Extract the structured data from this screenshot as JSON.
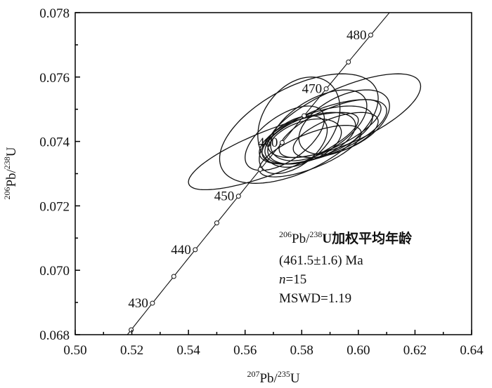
{
  "chart_data": {
    "type": "scatter",
    "subtype": "U-Pb concordia diagram with error ellipses",
    "xlabel": {
      "sup1": "207",
      "main1": "Pb/",
      "sup2": "235",
      "main2": "U"
    },
    "ylabel": {
      "sup1": "206",
      "main1": "Pb/",
      "sup2": "238",
      "main2": "U"
    },
    "xlim": [
      0.5,
      0.64
    ],
    "ylim": [
      0.068,
      0.078
    ],
    "x_ticks": [
      "0.50",
      "0.52",
      "0.54",
      "0.56",
      "0.58",
      "0.60",
      "0.62",
      "0.64"
    ],
    "y_ticks": [
      "0.068",
      "0.070",
      "0.072",
      "0.074",
      "0.076",
      "0.078"
    ],
    "grid": false,
    "concordia": {
      "age_range_ma": [
        420,
        500
      ],
      "marker_step_ma": 5,
      "labeled_ages": [
        "430",
        "440",
        "450",
        "460",
        "470",
        "480"
      ],
      "decay_constants": {
        "l238": 1.55125e-10,
        "l235": 9.8485e-10
      }
    },
    "ellipses": [
      {
        "cx": 0.57,
        "cy": 0.0737,
        "sx": 0.03,
        "sy": 0.0012,
        "rho": 0.8
      },
      {
        "cx": 0.579,
        "cy": 0.0744,
        "sx": 0.028,
        "sy": 0.0017,
        "rho": 0.55
      },
      {
        "cx": 0.595,
        "cy": 0.0748,
        "sx": 0.027,
        "sy": 0.0013,
        "rho": 0.7
      },
      {
        "cx": 0.579,
        "cy": 0.0746,
        "sx": 0.0145,
        "sy": 0.0014,
        "rho": 0.3
      },
      {
        "cx": 0.585,
        "cy": 0.0742,
        "sx": 0.02,
        "sy": 0.0009,
        "rho": 0.6
      },
      {
        "cx": 0.583,
        "cy": 0.0741,
        "sx": 0.016,
        "sy": 0.0008,
        "rho": 0.5
      },
      {
        "cx": 0.588,
        "cy": 0.0743,
        "sx": 0.022,
        "sy": 0.001,
        "rho": 0.65
      },
      {
        "cx": 0.581,
        "cy": 0.074,
        "sx": 0.013,
        "sy": 0.0007,
        "rho": 0.4
      },
      {
        "cx": 0.59,
        "cy": 0.0744,
        "sx": 0.018,
        "sy": 0.0009,
        "rho": 0.7
      },
      {
        "cx": 0.577,
        "cy": 0.0739,
        "sx": 0.012,
        "sy": 0.0009,
        "rho": 0.5
      },
      {
        "cx": 0.586,
        "cy": 0.0745,
        "sx": 0.017,
        "sy": 0.0011,
        "rho": 0.55
      },
      {
        "cx": 0.592,
        "cy": 0.0742,
        "sx": 0.015,
        "sy": 0.0007,
        "rho": 0.6
      },
      {
        "cx": 0.574,
        "cy": 0.0741,
        "sx": 0.014,
        "sy": 0.001,
        "rho": 0.6
      },
      {
        "cx": 0.583,
        "cy": 0.0737,
        "sx": 0.018,
        "sy": 0.0008,
        "rho": 0.7
      },
      {
        "cx": 0.595,
        "cy": 0.0746,
        "sx": 0.016,
        "sy": 0.001,
        "rho": 0.5
      }
    ],
    "annotation": {
      "line1_sup1": "206",
      "line1_main1": "Pb/",
      "line1_sup2": "238",
      "line1_main2": "U加权平均年龄",
      "line2": "(461.5±1.6) Ma",
      "line3_italic": "n",
      "line3_rest": "=15",
      "line4": "MSWD=1.19"
    }
  }
}
